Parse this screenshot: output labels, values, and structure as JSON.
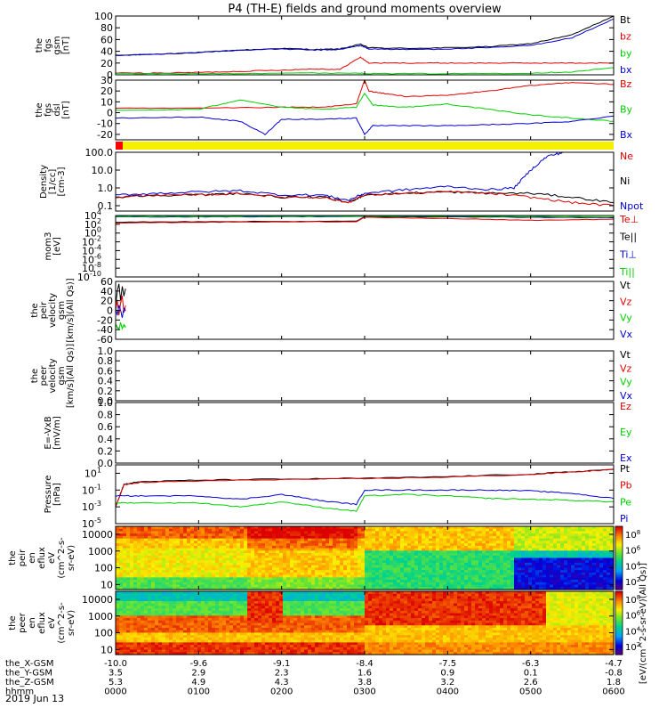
{
  "figure": {
    "title": "P4 (TH-E) fields and ground moments overview",
    "date_label": "2019 Jun 13"
  },
  "colors": {
    "black": "#000000",
    "red": "#e00000",
    "green": "#00d000",
    "blue": "#0000d0",
    "flag_yellow": "#f5f000",
    "flag_red": "#ff0000"
  },
  "time_axis": {
    "range_hours": [
      0,
      6
    ],
    "ticks_hours": [
      0,
      1,
      2,
      3,
      4,
      5,
      6
    ],
    "rows": [
      {
        "label": "the_X-GSM",
        "values": [
          "-10.0",
          "-9.6",
          "-9.1",
          "-8.4",
          "-7.5",
          "-6.3",
          "-4.7"
        ]
      },
      {
        "label": "the_Y-GSM",
        "values": [
          "3.5",
          "2.9",
          "2.3",
          "1.6",
          "0.9",
          "0.1",
          "-0.8"
        ]
      },
      {
        "label": "the_Z-GSM",
        "values": [
          "5.3",
          "4.9",
          "4.3",
          "3.8",
          "3.2",
          "2.6",
          "1.8"
        ]
      },
      {
        "label": "hhmm",
        "values": [
          "0000",
          "0100",
          "0200",
          "0300",
          "0400",
          "0500",
          "0600"
        ]
      }
    ]
  },
  "chart_data": [
    {
      "id": "fgs-gsm",
      "type": "line",
      "ylabel": [
        "the",
        "fgs",
        "gsm",
        "[nT]"
      ],
      "ylim": [
        0,
        100
      ],
      "yticks": [
        0,
        20,
        40,
        60,
        80,
        100
      ],
      "yscale": "linear",
      "legend": [
        "Bt",
        "bz",
        "by",
        "bx"
      ],
      "legend_colors": [
        "#000000",
        "#e00000",
        "#00d000",
        "#0000d0"
      ],
      "series": [
        {
          "name": "Bt",
          "color": "#000000",
          "x": [
            0,
            0.5,
            1,
            1.5,
            2,
            2.4,
            2.7,
            2.95,
            3.05,
            3.5,
            4,
            4.5,
            5,
            5.5,
            6
          ],
          "y": [
            33,
            35,
            38,
            42,
            45,
            43,
            44,
            52,
            46,
            45,
            46,
            48,
            53,
            68,
            100
          ]
        },
        {
          "name": "bz",
          "color": "#e00000",
          "x": [
            0,
            0.5,
            1,
            1.5,
            2,
            2.4,
            2.7,
            2.95,
            3.05,
            3.5,
            4,
            4.5,
            5,
            5.5,
            6
          ],
          "y": [
            3,
            3,
            4,
            6,
            8,
            10,
            9,
            30,
            20,
            20,
            20,
            20,
            20,
            20,
            20
          ]
        },
        {
          "name": "by",
          "color": "#00d000",
          "x": [
            0,
            1,
            2,
            2.9,
            3.1,
            4,
            5,
            5.5,
            6
          ],
          "y": [
            2,
            2,
            3,
            3,
            2,
            2,
            3,
            5,
            12
          ]
        },
        {
          "name": "bx",
          "color": "#0000d0",
          "x": [
            0,
            0.5,
            1,
            1.5,
            2,
            2.4,
            2.7,
            2.95,
            3.05,
            3.5,
            4,
            4.5,
            5,
            5.5,
            6
          ],
          "y": [
            33,
            35,
            38,
            42,
            44,
            42,
            43,
            50,
            44,
            43,
            44,
            46,
            50,
            63,
            95
          ]
        }
      ]
    },
    {
      "id": "fgs-dsl",
      "type": "line",
      "ylabel": [
        "the",
        "fgs",
        "dsl",
        "[nT]"
      ],
      "ylim": [
        -25,
        30
      ],
      "yticks": [
        -20,
        -10,
        0,
        10,
        20,
        30
      ],
      "yscale": "linear",
      "legend": [
        "Bz",
        "By",
        "Bx"
      ],
      "legend_colors": [
        "#e00000",
        "#00d000",
        "#0000d0"
      ],
      "series": [
        {
          "name": "Bz",
          "color": "#e00000",
          "x": [
            0,
            1,
            2,
            2.5,
            2.9,
            3.0,
            3.05,
            3.2,
            3.5,
            4,
            4.5,
            5,
            5.5,
            6
          ],
          "y": [
            4,
            4,
            5,
            5,
            8,
            30,
            20,
            18,
            15,
            16,
            20,
            25,
            28,
            26
          ]
        },
        {
          "name": "By",
          "color": "#00d000",
          "x": [
            0,
            1,
            1.5,
            2,
            2.5,
            2.9,
            3.0,
            3.1,
            3.5,
            4,
            4.5,
            5,
            5.5,
            6
          ],
          "y": [
            2,
            3,
            12,
            5,
            3,
            5,
            18,
            7,
            5,
            8,
            3,
            -2,
            -5,
            -8
          ]
        },
        {
          "name": "Bx",
          "color": "#0000d0",
          "x": [
            0,
            1,
            1.5,
            1.8,
            2,
            2.5,
            2.9,
            3.0,
            3.1,
            3.5,
            4,
            4.5,
            5,
            5.5,
            6
          ],
          "y": [
            -5,
            -4,
            -8,
            -20,
            -6,
            -6,
            -5,
            -20,
            -12,
            -12,
            -12,
            -11,
            -10,
            -8,
            -3
          ]
        }
      ]
    },
    {
      "id": "density",
      "type": "line",
      "ylabel": [
        "Density",
        "[1/cc]",
        "[cm-3]"
      ],
      "ylim": [
        0.05,
        100
      ],
      "yticks": [
        0.1,
        1,
        10,
        100
      ],
      "ytick_labels": [
        "0.1",
        "1.0",
        "10.0",
        "100.0"
      ],
      "yscale": "log",
      "legend": [
        "Ne",
        "Ni",
        "Npot"
      ],
      "legend_colors": [
        "#e00000",
        "#000000",
        "#0000d0"
      ],
      "series": [
        {
          "name": "Ni",
          "color": "#000000",
          "x": [
            0,
            0.5,
            1,
            1.5,
            2,
            2.5,
            2.8,
            3,
            3.5,
            4,
            4.5,
            5,
            5.5,
            6
          ],
          "y": [
            0.3,
            0.4,
            0.4,
            0.5,
            0.3,
            0.3,
            0.15,
            0.4,
            0.5,
            0.6,
            0.5,
            0.5,
            0.3,
            0.15
          ]
        },
        {
          "name": "Ne",
          "color": "#e00000",
          "x": [
            0,
            0.5,
            1,
            1.5,
            2,
            2.5,
            2.8,
            3,
            3.5,
            4,
            4.5,
            5,
            5.5,
            6
          ],
          "y": [
            0.3,
            0.4,
            0.4,
            0.5,
            0.3,
            0.3,
            0.15,
            0.4,
            0.5,
            0.6,
            0.5,
            0.3,
            0.15,
            0.1
          ]
        },
        {
          "name": "Npot",
          "color": "#0000d0",
          "x": [
            0,
            0.5,
            1,
            1.5,
            2,
            2.5,
            2.8,
            3,
            3.5,
            4,
            4.5,
            4.8,
            5,
            5.2,
            5.4
          ],
          "y": [
            0.4,
            0.5,
            0.6,
            0.7,
            0.4,
            0.4,
            0.2,
            0.5,
            0.8,
            1.2,
            0.8,
            1.0,
            10,
            60,
            100
          ]
        }
      ]
    },
    {
      "id": "temperature",
      "type": "line",
      "ylabel": [
        "mom3",
        "[eV]"
      ],
      "ylim": [
        1e-10,
        10000.0
      ],
      "yticks": [
        1e-10,
        1e-08,
        1e-06,
        0.0001,
        0.01,
        1,
        100,
        10000.0
      ],
      "ytick_exponents": [
        "-10",
        "-8",
        "-6",
        "-4",
        "-2",
        "0",
        "2",
        "4"
      ],
      "yscale": "log",
      "legend": [
        "Te⊥",
        "Te||",
        "Ti⊥",
        "Ti||"
      ],
      "legend_colors": [
        "#e00000",
        "#000000",
        "#0000d0",
        "#00d000"
      ],
      "series": [
        {
          "name": "Te||",
          "color": "#000000",
          "x": [
            0,
            1,
            2,
            2.9,
            3.0,
            4,
            5,
            6
          ],
          "y": [
            300,
            400,
            450,
            500,
            5000,
            5000,
            4000,
            3000
          ]
        },
        {
          "name": "Ti⊥",
          "color": "#0000d0",
          "x": [
            0,
            1,
            2,
            3,
            4,
            5,
            6
          ],
          "y": [
            5000,
            5000,
            5500,
            6000,
            6000,
            5000,
            4000
          ]
        },
        {
          "name": "Ti||",
          "color": "#00d000",
          "x": [
            0,
            1,
            2,
            3,
            4,
            5,
            6
          ],
          "y": [
            6000,
            6000,
            6500,
            7000,
            7000,
            6000,
            5000
          ]
        },
        {
          "name": "Te⊥",
          "color": "#e00000",
          "x": [
            0,
            1,
            2,
            2.9,
            3.0,
            4,
            5,
            6
          ],
          "y": [
            200,
            300,
            350,
            400,
            4000,
            2000,
            800,
            1500
          ]
        }
      ]
    },
    {
      "id": "peir-velocity",
      "type": "line",
      "ylabel": [
        "the",
        "peir",
        "velocity",
        "gsm",
        "[km/s](All Qs)]"
      ],
      "ylim": [
        -60,
        60
      ],
      "yticks": [
        -60,
        -40,
        -20,
        0,
        20,
        40,
        60
      ],
      "yscale": "linear",
      "legend": [
        "Vt",
        "Vz",
        "Vy",
        "Vx"
      ],
      "legend_colors": [
        "#000000",
        "#e00000",
        "#00d000",
        "#0000d0"
      ],
      "series": [
        {
          "name": "Vt",
          "color": "#000000",
          "x": [
            0.0,
            0.02,
            0.04,
            0.06,
            0.08,
            0.1,
            0.12
          ],
          "y": [
            10,
            40,
            55,
            20,
            50,
            30,
            45
          ]
        },
        {
          "name": "Vz",
          "color": "#e00000",
          "x": [
            0.0,
            0.02,
            0.04,
            0.06,
            0.08,
            0.1,
            0.12
          ],
          "y": [
            0,
            20,
            -10,
            15,
            30,
            -5,
            10
          ]
        },
        {
          "name": "Vy",
          "color": "#00d000",
          "x": [
            0.0,
            0.02,
            0.04,
            0.06,
            0.08,
            0.1,
            0.12
          ],
          "y": [
            -30,
            -35,
            -40,
            -25,
            -38,
            -30,
            -35
          ]
        },
        {
          "name": "Vx",
          "color": "#0000d0",
          "x": [
            0.0,
            0.02,
            0.04,
            0.06,
            0.08,
            0.1,
            0.12
          ],
          "y": [
            5,
            -10,
            10,
            0,
            -15,
            5,
            0
          ]
        }
      ]
    },
    {
      "id": "peer-velocity",
      "type": "line",
      "ylabel": [
        "the",
        "peer",
        "velocity",
        "gsm",
        "[km/s](All Qs)]"
      ],
      "ylim": [
        0,
        1
      ],
      "yticks": [
        0,
        0.2,
        0.4,
        0.6,
        0.8,
        1.0
      ],
      "ytick_labels": [
        "0.0",
        "0.2",
        "0.4",
        "0.6",
        "0.8",
        "1.0"
      ],
      "yscale": "linear",
      "legend": [
        "Vt",
        "Vz",
        "Vy",
        "Vx"
      ],
      "legend_colors": [
        "#000000",
        "#e00000",
        "#00d000",
        "#0000d0"
      ],
      "series": []
    },
    {
      "id": "efield",
      "type": "line",
      "ylabel": [
        "E=-VxB",
        "[mV/m]"
      ],
      "ylim": [
        0,
        1
      ],
      "yticks": [
        0,
        0.2,
        0.4,
        0.6,
        0.8,
        1.0
      ],
      "ytick_labels": [
        "0.0",
        "0.2",
        "0.4",
        "0.6",
        "0.8",
        "1.0"
      ],
      "yscale": "linear",
      "legend": [
        "Ez",
        "Ey",
        "Ex"
      ],
      "legend_colors": [
        "#e00000",
        "#00d000",
        "#0000d0"
      ],
      "series": []
    },
    {
      "id": "pressure",
      "type": "line",
      "ylabel": [
        "Pressure",
        "[nPa]"
      ],
      "ylim": [
        1e-05,
        100
      ],
      "yticks": [
        1e-05,
        0.001,
        0.1,
        10
      ],
      "ytick_exponents": [
        "-5",
        "-3",
        "-1",
        "1"
      ],
      "yscale": "log",
      "legend": [
        "Pt",
        "Pb",
        "Pe",
        "Pi"
      ],
      "legend_colors": [
        "#000000",
        "#e00000",
        "#00d000",
        "#0000d0"
      ],
      "series": [
        {
          "name": "Pt",
          "color": "#000000",
          "x": [
            0,
            0.1,
            0.3,
            1,
            2,
            3,
            4,
            5,
            5.5,
            6
          ],
          "y": [
            0.001,
            0.5,
            1,
            1.5,
            2,
            2.5,
            4,
            8,
            15,
            30
          ]
        },
        {
          "name": "Pb",
          "color": "#e00000",
          "x": [
            0,
            0.1,
            0.3,
            1,
            2,
            3,
            4,
            5,
            5.5,
            6
          ],
          "y": [
            0.001,
            0.4,
            0.8,
            1.2,
            1.8,
            2.2,
            3.5,
            7,
            14,
            28
          ]
        },
        {
          "name": "Pi",
          "color": "#0000d0",
          "x": [
            0,
            0.3,
            1,
            1.5,
            2,
            2.5,
            2.9,
            3.0,
            3.5,
            4,
            4.5,
            5,
            5.5,
            6
          ],
          "y": [
            0.02,
            0.02,
            0.02,
            0.008,
            0.03,
            0.005,
            0.002,
            0.1,
            0.1,
            0.1,
            0.1,
            0.08,
            0.04,
            0.01
          ]
        },
        {
          "name": "Pe",
          "color": "#00d000",
          "x": [
            0,
            0.3,
            1,
            1.5,
            2,
            2.5,
            2.9,
            3.0,
            3.5,
            4,
            4.5,
            5,
            5.5,
            6
          ],
          "y": [
            0.003,
            0.003,
            0.003,
            0.001,
            0.004,
            0.0008,
            0.0003,
            0.02,
            0.03,
            0.02,
            0.01,
            0.008,
            0.006,
            0.004
          ]
        }
      ]
    },
    {
      "id": "peir-en-eflux",
      "type": "heatmap",
      "ylabel": [
        "the",
        "peir",
        "en",
        "eflux",
        "eV",
        "(cm^2-s-",
        "sr-eV)"
      ],
      "ylim": [
        5,
        30000
      ],
      "yticks": [
        10,
        100,
        1000,
        10000
      ],
      "ytick_labels": [
        "10",
        "100",
        "1000",
        "10000"
      ],
      "yscale": "log",
      "colorbar_exponents": [
        "2",
        "4",
        "6",
        "8"
      ]
    },
    {
      "id": "peer-en-eflux",
      "type": "heatmap",
      "ylabel": [
        "the",
        "peer",
        "en",
        "eflux",
        "eV",
        "(cm^2-s-",
        "sr-eV)"
      ],
      "ylim": [
        5,
        30000
      ],
      "yticks": [
        10,
        100,
        1000,
        10000
      ],
      "ytick_labels": [
        "10",
        "100",
        "1000",
        "10000"
      ],
      "yscale": "log",
      "colorbar_exponents": [
        "2",
        "4",
        "6",
        "8"
      ]
    }
  ],
  "colorbar": {
    "label": "[eV/(cm^2-s-sr-eV)(All Qs)]"
  }
}
